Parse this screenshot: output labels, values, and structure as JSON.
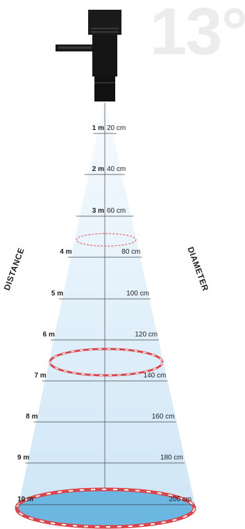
{
  "beam_angle": "13°",
  "labels": {
    "distance": "DISTANCE",
    "diameter": "DIAMETER"
  },
  "rows": [
    {
      "distance": "1 m",
      "diameter": "20 cm"
    },
    {
      "distance": "2 m",
      "diameter": "40 cm"
    },
    {
      "distance": "3 m",
      "diameter": "60 cm"
    },
    {
      "distance": "4 m",
      "diameter": "80 cm"
    },
    {
      "distance": "5 m",
      "diameter": "100 cm"
    },
    {
      "distance": "6 m",
      "diameter": "120 cm"
    },
    {
      "distance": "7 m",
      "diameter": "140 cm"
    },
    {
      "distance": "8 m",
      "diameter": "160 cm"
    },
    {
      "distance": "9 m",
      "diameter": "180 cm"
    },
    {
      "distance": "10 m",
      "diameter": "200 cm"
    }
  ],
  "colors": {
    "beam_light": "#eaf4fc",
    "beam_dark": "#cfe6f6",
    "spot_fill": "#6bb7e2",
    "ring_red": "#d9454a",
    "fixture": "#1a1a1a"
  }
}
